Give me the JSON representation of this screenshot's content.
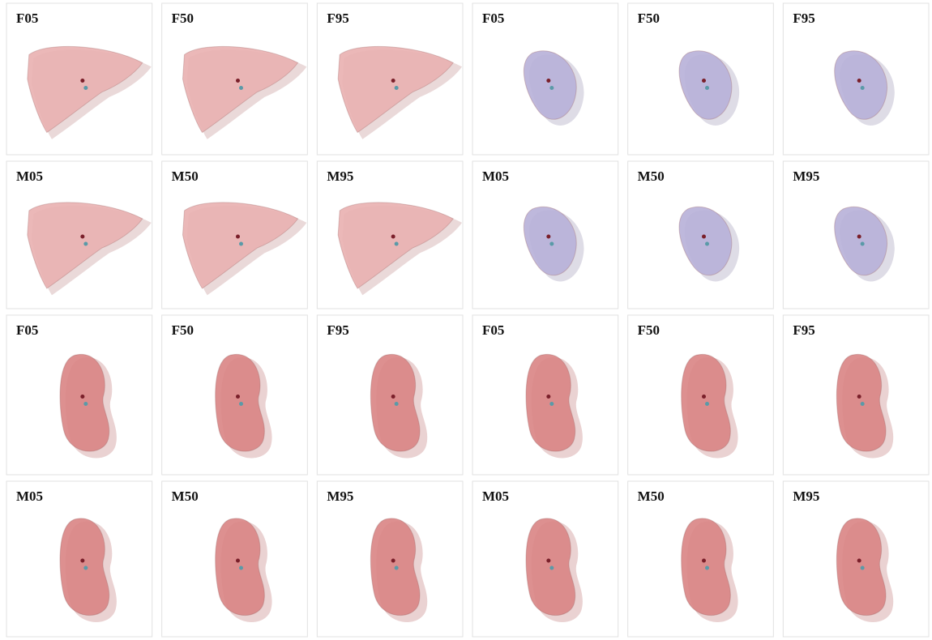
{
  "rows": [
    [
      "F05",
      "F50",
      "F95",
      "F05",
      "F50",
      "F95"
    ],
    [
      "M05",
      "M50",
      "M95",
      "M05",
      "M50",
      "M95"
    ],
    [
      "F05",
      "F50",
      "F95",
      "F05",
      "F50",
      "F95"
    ],
    [
      "M05",
      "M50",
      "M95",
      "M05",
      "M50",
      "M95"
    ]
  ]
}
